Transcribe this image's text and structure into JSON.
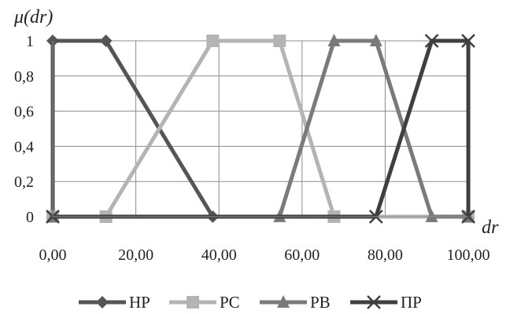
{
  "chart_data": {
    "type": "line",
    "title": "",
    "ylabel": "μ(dr)",
    "xlabel": "dr",
    "xlim": [
      0,
      100
    ],
    "ylim": [
      0,
      1
    ],
    "xticks": [
      "0,00",
      "20,00",
      "40,00",
      "60,00",
      "80,00",
      "100,00"
    ],
    "xtick_values": [
      0,
      20,
      40,
      60,
      80,
      100
    ],
    "yticks": [
      "0",
      "0,2",
      "0,4",
      "0,6",
      "0,8",
      "1"
    ],
    "ytick_values": [
      0,
      0.2,
      0.4,
      0.6,
      0.8,
      1
    ],
    "grid": true,
    "legend_position": "bottom",
    "series": [
      {
        "name": "HP",
        "marker": "diamond",
        "color": "#555555",
        "points": [
          [
            0,
            0
          ],
          [
            0,
            1
          ],
          [
            12.8,
            1
          ],
          [
            38.5,
            0
          ],
          [
            100,
            0
          ]
        ]
      },
      {
        "name": "PC",
        "marker": "square",
        "color": "#b4b4b4",
        "points": [
          [
            0,
            0
          ],
          [
            12.8,
            0
          ],
          [
            38.5,
            1
          ],
          [
            54.6,
            1
          ],
          [
            67.7,
            0
          ],
          [
            100,
            0
          ]
        ]
      },
      {
        "name": "PB",
        "marker": "triangle",
        "color": "#7a7a7a",
        "points": [
          [
            0,
            0
          ],
          [
            54.6,
            0
          ],
          [
            67.7,
            1
          ],
          [
            77.8,
            1
          ],
          [
            91.2,
            0
          ],
          [
            100,
            0
          ]
        ]
      },
      {
        "name": "ПР",
        "marker": "x",
        "color": "#3f3f3f",
        "points": [
          [
            0,
            0
          ],
          [
            77.8,
            0
          ],
          [
            91.2,
            1
          ],
          [
            100,
            1
          ],
          [
            100,
            0
          ]
        ]
      }
    ]
  }
}
